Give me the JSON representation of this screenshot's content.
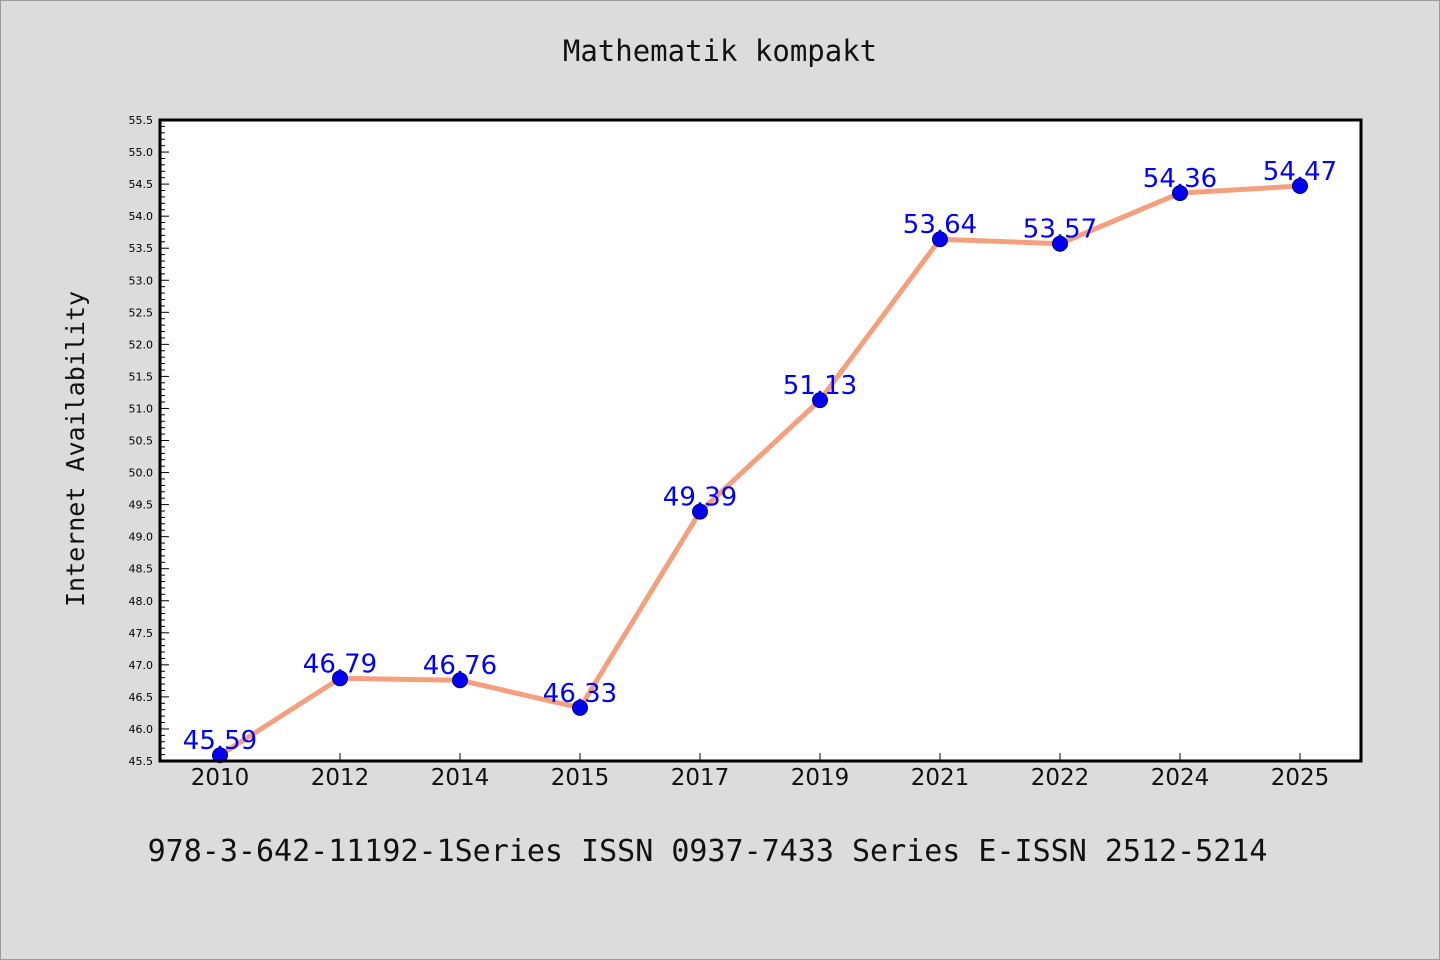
{
  "chart_data": {
    "type": "line",
    "title": "Mathematik kompakt",
    "xlabel": "",
    "ylabel": "Internet Availability",
    "categories": [
      "2010",
      "2012",
      "2014",
      "2015",
      "2017",
      "2019",
      "2021",
      "2022",
      "2024",
      "2025"
    ],
    "series": [
      {
        "values": [
          45.59,
          46.79,
          46.76,
          46.33,
          49.39,
          51.13,
          53.64,
          53.57,
          54.36,
          54.47
        ]
      }
    ],
    "data_labels": [
      "45.59",
      "46.79",
      "46.76",
      "46.33",
      "49.39",
      "51.13",
      "53.64",
      "53.57",
      "54.36",
      "54.47"
    ],
    "ylim": [
      45.5,
      55.5
    ],
    "yticks": [
      "45.5",
      "46.0",
      "46.5",
      "47.0",
      "47.5",
      "48.0",
      "48.5",
      "49.0",
      "49.5",
      "50.0",
      "50.5",
      "51.0",
      "51.5",
      "52.0",
      "52.5",
      "53.0",
      "53.5",
      "54.0",
      "54.5",
      "55.0",
      "55.5"
    ],
    "grid": false,
    "legend": "none",
    "colors": {
      "line": "#f4a07f",
      "marker": "#0000ee",
      "label": "#0000ff"
    }
  },
  "caption": "978-3-642-11192-1Series ISSN 0937-7433 Series E-ISSN 2512-5214"
}
